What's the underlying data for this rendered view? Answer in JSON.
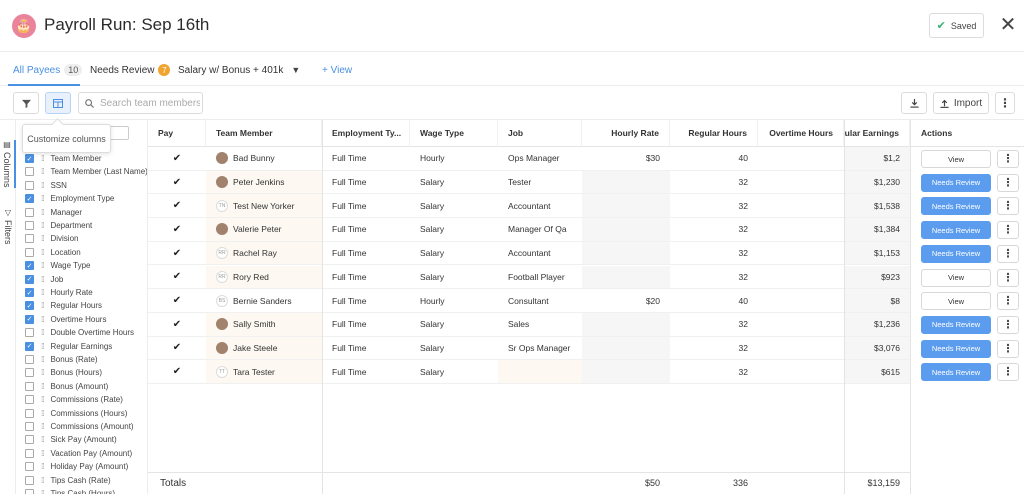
{
  "header": {
    "title": "Payroll Run: Sep 16th",
    "saved_label": "Saved",
    "close_glyph": "✕"
  },
  "tabs": [
    {
      "label": "All Payees",
      "count": "10"
    },
    {
      "label": "Needs Review",
      "badge": "7"
    },
    {
      "label": "Salary w/ Bonus + 401k"
    },
    {
      "label": "+ View"
    }
  ],
  "toolbar": {
    "search_placeholder": "Search team members.",
    "import_label": "Import"
  },
  "tooltip": "Customize columns",
  "rail": {
    "columns_label": "Columns",
    "filters_label": "Filters"
  },
  "columns": [
    {
      "label": "Team Member",
      "checked": true
    },
    {
      "label": "Team Member (Last Name)",
      "checked": false
    },
    {
      "label": "SSN",
      "checked": false
    },
    {
      "label": "Employment Type",
      "checked": true
    },
    {
      "label": "Manager",
      "checked": false
    },
    {
      "label": "Department",
      "checked": false
    },
    {
      "label": "Division",
      "checked": false
    },
    {
      "label": "Location",
      "checked": false
    },
    {
      "label": "Wage Type",
      "checked": true
    },
    {
      "label": "Job",
      "checked": true
    },
    {
      "label": "Hourly Rate",
      "checked": true
    },
    {
      "label": "Regular Hours",
      "checked": true
    },
    {
      "label": "Overtime Hours",
      "checked": true
    },
    {
      "label": "Double Overtime Hours",
      "checked": false
    },
    {
      "label": "Regular Earnings",
      "checked": true
    },
    {
      "label": "Bonus (Rate)",
      "checked": false
    },
    {
      "label": "Bonus (Hours)",
      "checked": false
    },
    {
      "label": "Bonus (Amount)",
      "checked": false
    },
    {
      "label": "Commissions (Rate)",
      "checked": false
    },
    {
      "label": "Commissions (Hours)",
      "checked": false
    },
    {
      "label": "Commissions (Amount)",
      "checked": false
    },
    {
      "label": "Sick Pay (Amount)",
      "checked": false
    },
    {
      "label": "Vacation Pay (Amount)",
      "checked": false
    },
    {
      "label": "Holiday Pay (Amount)",
      "checked": false
    },
    {
      "label": "Tips Cash (Rate)",
      "checked": false
    },
    {
      "label": "Tips Cash (Hours)",
      "checked": false
    }
  ],
  "table": {
    "headers": {
      "pay": "Pay",
      "member": "Team Member",
      "employment": "Employment Ty...",
      "wage": "Wage Type",
      "job": "Job",
      "rate": "Hourly Rate",
      "reg_hours": "Regular Hours",
      "ot_hours": "Overtime Hours",
      "earnings": "Regular Earnings",
      "actions": "Actions"
    },
    "rows": [
      {
        "name": "Bad Bunny",
        "initials": "",
        "photo": true,
        "employment": "Full Time",
        "wage": "Hourly",
        "job": "Ops Manager",
        "rate": "$30",
        "reg_hours": "40",
        "ot_hours": "",
        "earnings": "$1,2",
        "action": "View"
      },
      {
        "name": "Peter Jenkins",
        "initials": "",
        "photo": true,
        "employment": "Full Time",
        "wage": "Salary",
        "job": "Tester",
        "rate": "",
        "reg_hours": "32",
        "ot_hours": "",
        "earnings": "$1,230",
        "action": "Needs Review"
      },
      {
        "name": "Test New Yorker",
        "initials": "TN",
        "photo": false,
        "employment": "Full Time",
        "wage": "Salary",
        "job": "Accountant",
        "rate": "",
        "reg_hours": "32",
        "ot_hours": "",
        "earnings": "$1,538",
        "action": "Needs Review"
      },
      {
        "name": "Valerie Peter",
        "initials": "",
        "photo": true,
        "employment": "Full Time",
        "wage": "Salary",
        "job": "Manager Of Qa",
        "rate": "",
        "reg_hours": "32",
        "ot_hours": "",
        "earnings": "$1,384",
        "action": "Needs Review"
      },
      {
        "name": "Rachel Ray",
        "initials": "RR",
        "photo": false,
        "employment": "Full Time",
        "wage": "Salary",
        "job": "Accountant",
        "rate": "",
        "reg_hours": "32",
        "ot_hours": "",
        "earnings": "$1,153",
        "action": "Needs Review"
      },
      {
        "name": "Rory Red",
        "initials": "RR",
        "photo": false,
        "employment": "Full Time",
        "wage": "Salary",
        "job": "Football Player",
        "rate": "",
        "reg_hours": "32",
        "ot_hours": "",
        "earnings": "$923",
        "action": "View"
      },
      {
        "name": "Bernie Sanders",
        "initials": "BS",
        "photo": false,
        "employment": "Full Time",
        "wage": "Hourly",
        "job": "Consultant",
        "rate": "$20",
        "reg_hours": "40",
        "ot_hours": "",
        "earnings": "$8",
        "action": "View"
      },
      {
        "name": "Sally Smith",
        "initials": "",
        "photo": true,
        "employment": "Full Time",
        "wage": "Salary",
        "job": "Sales",
        "rate": "",
        "reg_hours": "32",
        "ot_hours": "",
        "earnings": "$1,236",
        "action": "Needs Review"
      },
      {
        "name": "Jake Steele",
        "initials": "",
        "photo": true,
        "employment": "Full Time",
        "wage": "Salary",
        "job": "Sr Ops Manager",
        "rate": "",
        "reg_hours": "32",
        "ot_hours": "",
        "earnings": "$3,076",
        "action": "Needs Review"
      },
      {
        "name": "Tara Tester",
        "initials": "TT",
        "photo": false,
        "employment": "Full Time",
        "wage": "Salary",
        "job": "",
        "rate": "",
        "reg_hours": "32",
        "ot_hours": "",
        "earnings": "$615",
        "action": "Needs Review"
      }
    ],
    "totals": {
      "label": "Totals",
      "rate": "$50",
      "reg_hours": "336",
      "earnings": "$13,159"
    }
  },
  "colors": {
    "accent": "#4a90e2",
    "review_button": "#5b9cef",
    "badge": "#f0a430",
    "saved_check": "#3bb273"
  },
  "icons": {
    "logo": "cake-icon",
    "filter": "filter-icon",
    "columns": "columns-icon",
    "search": "search-icon",
    "download": "download-icon",
    "import": "upload-icon",
    "more": "kebab-icon",
    "check": "check-icon",
    "close": "close-icon"
  }
}
